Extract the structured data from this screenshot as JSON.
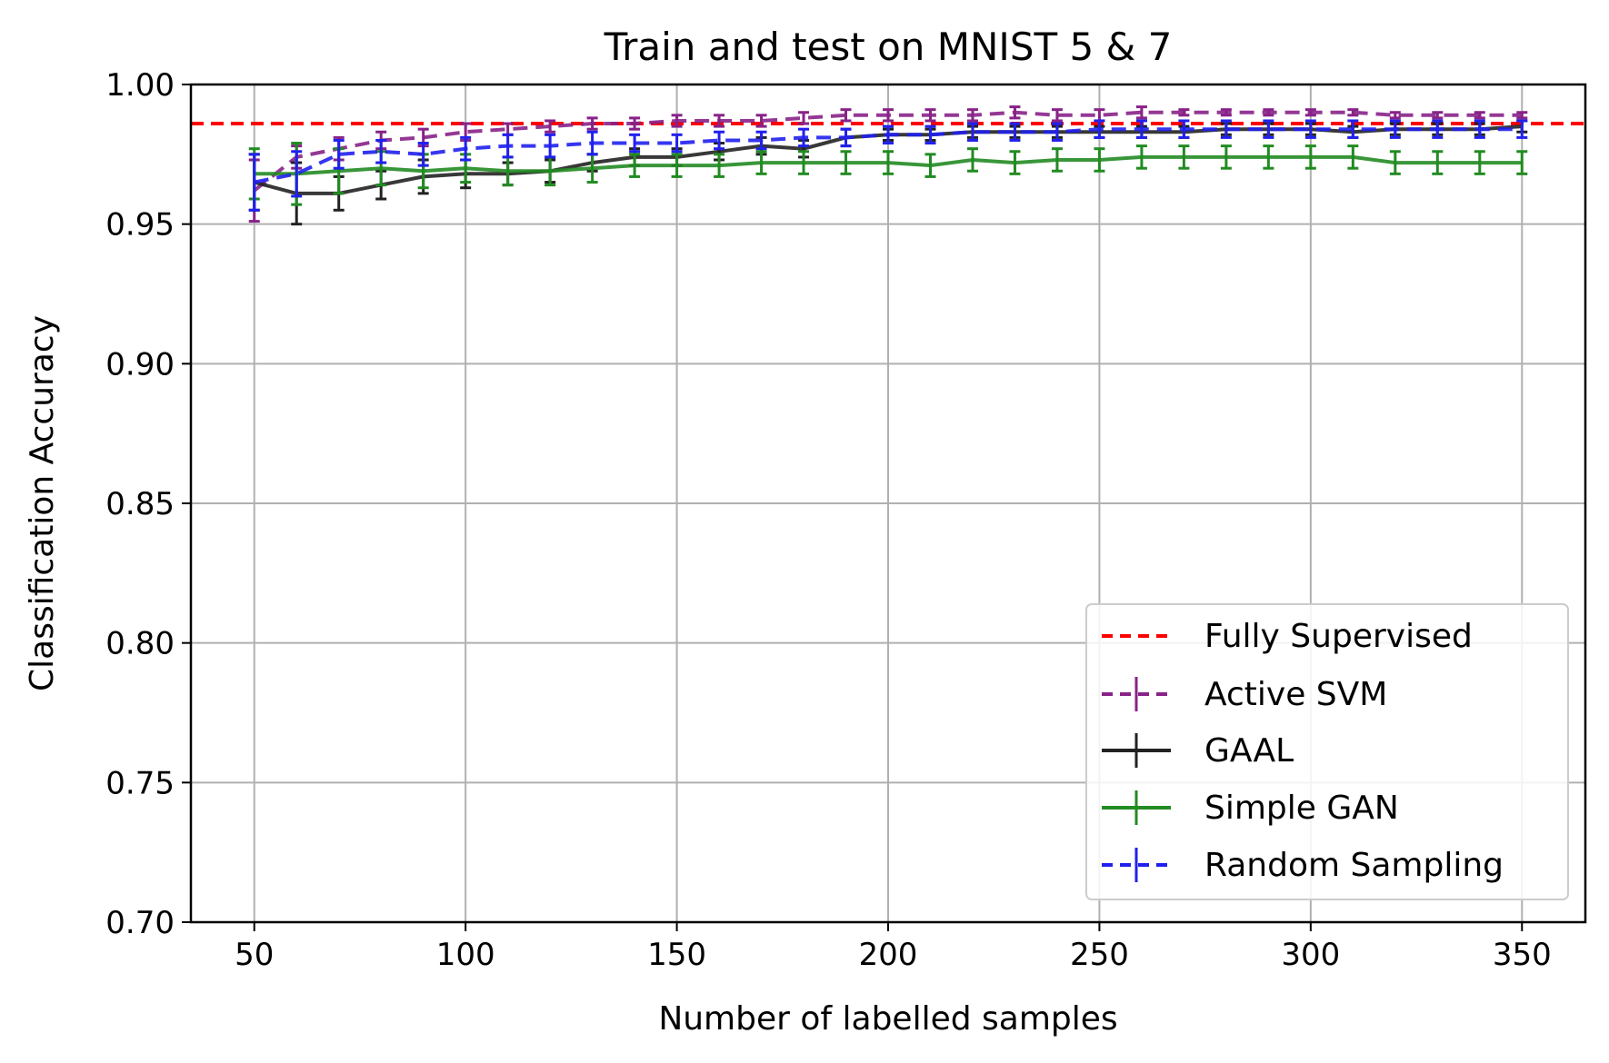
{
  "chart_data": {
    "type": "line",
    "title": "Train and test on MNIST 5 & 7",
    "xlabel": "Number of labelled samples",
    "ylabel": "Classification Accuracy",
    "xlim": [
      35,
      365
    ],
    "ylim": [
      0.7,
      1.0
    ],
    "xticks": [
      50,
      100,
      150,
      200,
      250,
      300,
      350
    ],
    "yticks": [
      0.7,
      0.75,
      0.8,
      0.85,
      0.9,
      0.95,
      1.0
    ],
    "ytick_labels": [
      "0.70",
      "0.75",
      "0.80",
      "0.85",
      "0.90",
      "0.95",
      "1.00"
    ],
    "grid": true,
    "legend_position": "bottom-right",
    "x": [
      50,
      60,
      70,
      80,
      90,
      100,
      110,
      120,
      130,
      140,
      150,
      160,
      170,
      180,
      190,
      200,
      210,
      220,
      230,
      240,
      250,
      260,
      270,
      280,
      290,
      300,
      310,
      320,
      330,
      340,
      350
    ],
    "reference_line": {
      "name": "Fully Supervised",
      "value": 0.986,
      "color": "#ff0000"
    },
    "series": [
      {
        "name": "Active SVM",
        "color": "#882288",
        "dashed": true,
        "values": [
          0.962,
          0.974,
          0.977,
          0.98,
          0.981,
          0.983,
          0.984,
          0.985,
          0.986,
          0.986,
          0.987,
          0.987,
          0.987,
          0.988,
          0.989,
          0.989,
          0.989,
          0.989,
          0.99,
          0.989,
          0.989,
          0.99,
          0.99,
          0.99,
          0.99,
          0.99,
          0.99,
          0.989,
          0.989,
          0.989,
          0.989
        ],
        "errors": [
          0.011,
          0.004,
          0.004,
          0.003,
          0.003,
          0.003,
          0.002,
          0.002,
          0.002,
          0.002,
          0.002,
          0.002,
          0.002,
          0.002,
          0.002,
          0.002,
          0.002,
          0.002,
          0.002,
          0.002,
          0.002,
          0.002,
          0.001,
          0.001,
          0.001,
          0.001,
          0.001,
          0.001,
          0.001,
          0.001,
          0.001
        ]
      },
      {
        "name": "GAAL",
        "color": "#222222",
        "dashed": false,
        "values": [
          0.965,
          0.961,
          0.961,
          0.964,
          0.967,
          0.968,
          0.968,
          0.969,
          0.972,
          0.974,
          0.974,
          0.976,
          0.978,
          0.977,
          0.981,
          0.982,
          0.982,
          0.983,
          0.983,
          0.983,
          0.983,
          0.983,
          0.983,
          0.984,
          0.984,
          0.984,
          0.983,
          0.984,
          0.984,
          0.984,
          0.985
        ],
        "errors": [
          0.01,
          0.011,
          0.006,
          0.005,
          0.006,
          0.005,
          0.004,
          0.004,
          0.003,
          0.003,
          0.003,
          0.003,
          0.003,
          0.003,
          0.003,
          0.002,
          0.002,
          0.002,
          0.002,
          0.002,
          0.002,
          0.002,
          0.002,
          0.002,
          0.002,
          0.002,
          0.002,
          0.002,
          0.002,
          0.002,
          0.002
        ]
      },
      {
        "name": "Simple GAN",
        "color": "#228b22",
        "dashed": false,
        "values": [
          0.968,
          0.968,
          0.969,
          0.97,
          0.969,
          0.97,
          0.969,
          0.969,
          0.97,
          0.971,
          0.971,
          0.971,
          0.972,
          0.972,
          0.972,
          0.972,
          0.971,
          0.973,
          0.972,
          0.973,
          0.973,
          0.974,
          0.974,
          0.974,
          0.974,
          0.974,
          0.974,
          0.972,
          0.972,
          0.972,
          0.972
        ],
        "errors": [
          0.009,
          0.011,
          0.008,
          0.006,
          0.006,
          0.005,
          0.005,
          0.005,
          0.005,
          0.004,
          0.004,
          0.004,
          0.004,
          0.004,
          0.004,
          0.004,
          0.004,
          0.004,
          0.004,
          0.004,
          0.004,
          0.004,
          0.004,
          0.004,
          0.004,
          0.004,
          0.004,
          0.004,
          0.004,
          0.004,
          0.004
        ]
      },
      {
        "name": "Random Sampling",
        "color": "#2020ee",
        "dashed": true,
        "values": [
          0.965,
          0.968,
          0.975,
          0.976,
          0.975,
          0.977,
          0.978,
          0.978,
          0.979,
          0.979,
          0.979,
          0.98,
          0.98,
          0.981,
          0.981,
          0.982,
          0.982,
          0.983,
          0.983,
          0.983,
          0.984,
          0.984,
          0.984,
          0.984,
          0.984,
          0.984,
          0.984,
          0.984,
          0.984,
          0.984,
          0.984
        ],
        "errors": [
          0.01,
          0.008,
          0.005,
          0.004,
          0.004,
          0.004,
          0.004,
          0.004,
          0.004,
          0.003,
          0.003,
          0.003,
          0.003,
          0.003,
          0.003,
          0.003,
          0.003,
          0.003,
          0.003,
          0.003,
          0.003,
          0.003,
          0.003,
          0.003,
          0.003,
          0.003,
          0.003,
          0.003,
          0.003,
          0.003,
          0.003
        ]
      }
    ]
  }
}
